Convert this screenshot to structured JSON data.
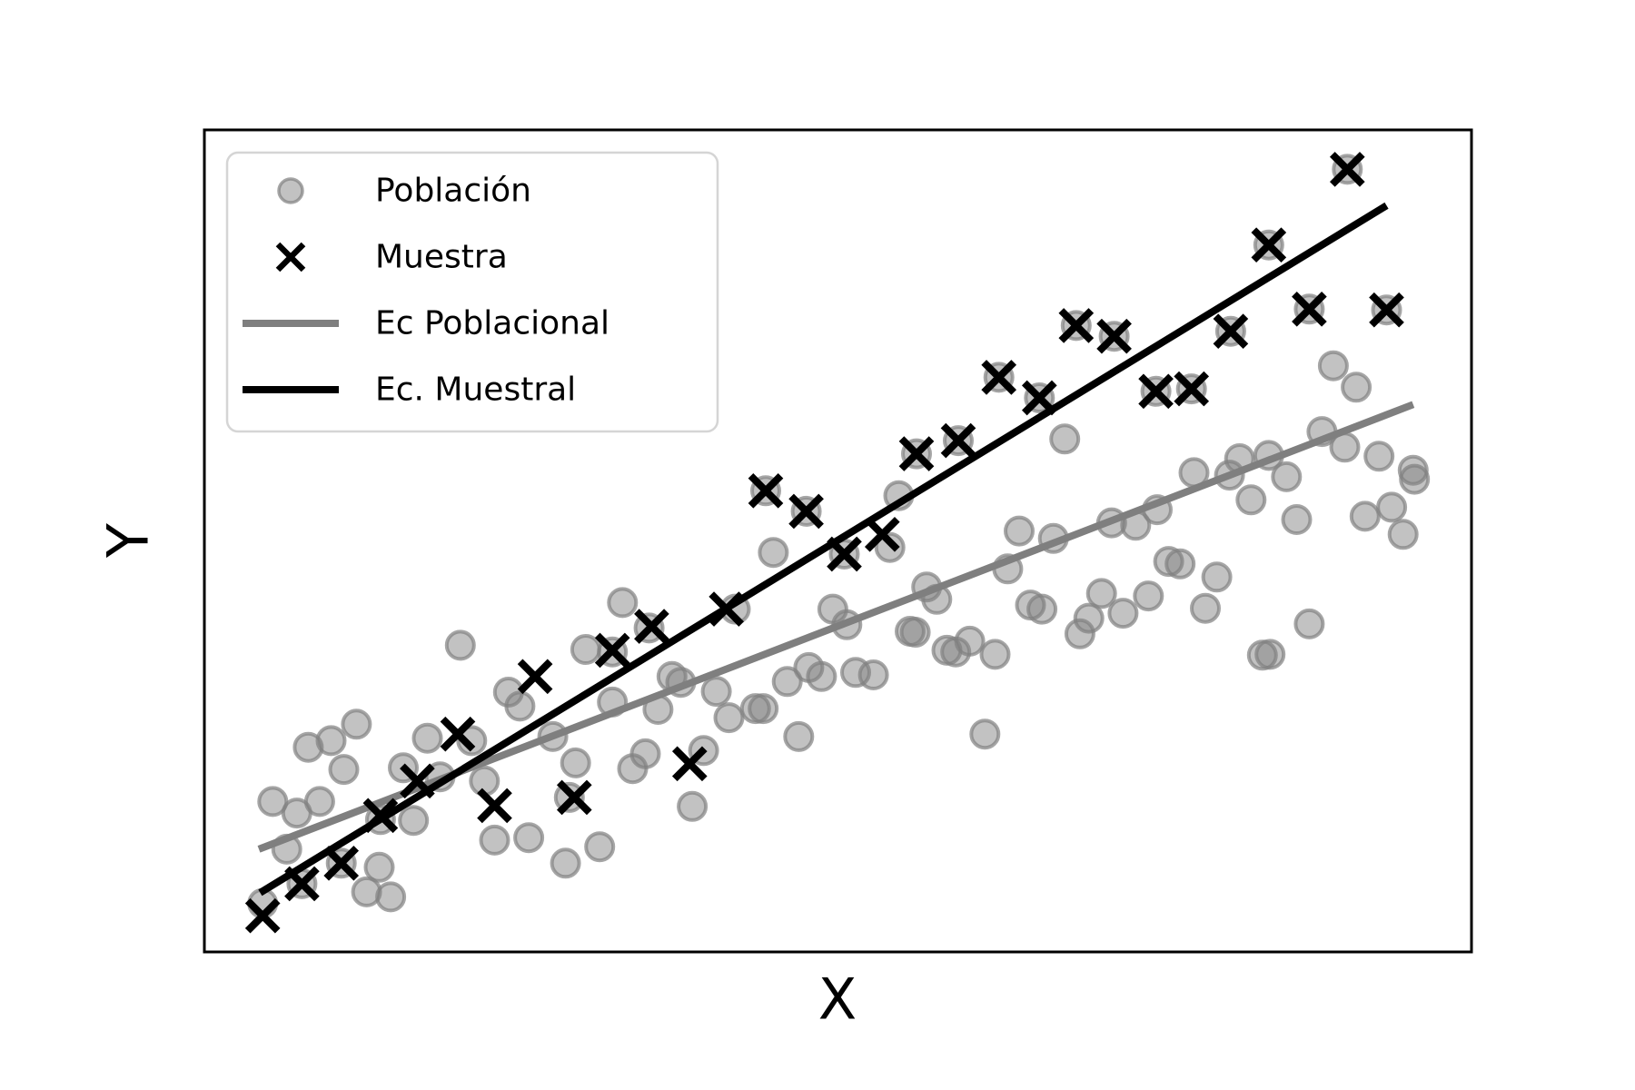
{
  "chart_data": {
    "type": "scatter",
    "title": "",
    "xlabel": "X",
    "ylabel": "Y",
    "xlim": [
      0,
      10
    ],
    "ylim": [
      0,
      10
    ],
    "grid": false,
    "ticks_visible": false,
    "colors": {
      "population": "#808080",
      "sample": "#000000",
      "population_line": "#7f7f7f",
      "sample_line": "#000000",
      "legend_border": "#d5d5d5"
    },
    "legend": {
      "position": "upper-left",
      "entries": [
        {
          "label": "Población",
          "marker": "circle"
        },
        {
          "label": "Muestra",
          "marker": "x"
        },
        {
          "label": "Ec Poblacional",
          "marker": "line-gray"
        },
        {
          "label": "Ec. Muestral",
          "marker": "line-black"
        }
      ]
    },
    "series": [
      {
        "name": "Población",
        "type": "scatter-circle",
        "points": [
          [
            0.46,
            0.59
          ],
          [
            0.65,
            1.25
          ],
          [
            0.77,
            0.83
          ],
          [
            1.08,
            1.08
          ],
          [
            1.28,
            0.73
          ],
          [
            1.38,
            1.03
          ],
          [
            1.47,
            0.67
          ],
          [
            2.29,
            1.36
          ],
          [
            2.56,
            1.39
          ],
          [
            2.85,
            1.08
          ],
          [
            3.12,
            1.28
          ],
          [
            3.85,
            1.77
          ],
          [
            2.88,
            1.88
          ],
          [
            2.93,
            2.3
          ],
          [
            3.38,
            2.23
          ],
          [
            3.48,
            2.41
          ],
          [
            3.94,
            2.45
          ],
          [
            0.54,
            1.83
          ],
          [
            0.73,
            1.69
          ],
          [
            0.91,
            1.83
          ],
          [
            1.39,
            1.61
          ],
          [
            1.65,
            1.6
          ],
          [
            2.02,
            3.73
          ],
          [
            2.4,
            3.16
          ],
          [
            2.49,
            2.99
          ],
          [
            1.2,
            2.77
          ],
          [
            0.82,
            2.49
          ],
          [
            1.0,
            2.57
          ],
          [
            1.76,
            2.6
          ],
          [
            2.11,
            2.57
          ],
          [
            1.1,
            2.22
          ],
          [
            1.57,
            2.24
          ],
          [
            1.86,
            2.13
          ],
          [
            2.21,
            2.08
          ],
          [
            2.75,
            2.62
          ],
          [
            3.22,
            3.04
          ],
          [
            3.58,
            2.95
          ],
          [
            4.14,
            2.85
          ],
          [
            4.35,
            2.96
          ],
          [
            4.41,
            2.96
          ],
          [
            4.69,
            2.62
          ],
          [
            3.01,
            3.68
          ],
          [
            3.22,
            3.65
          ],
          [
            3.3,
            4.25
          ],
          [
            3.51,
            3.94
          ],
          [
            4.49,
            4.86
          ],
          [
            5.41,
            4.92
          ],
          [
            5.48,
            5.55
          ],
          [
            4.19,
            4.17
          ],
          [
            4.96,
            4.17
          ],
          [
            5.07,
            3.98
          ],
          [
            5.57,
            3.9
          ],
          [
            3.69,
            3.35
          ],
          [
            3.76,
            3.28
          ],
          [
            4.04,
            3.17
          ],
          [
            4.6,
            3.29
          ],
          [
            4.77,
            3.46
          ],
          [
            4.87,
            3.35
          ],
          [
            5.14,
            3.4
          ],
          [
            5.28,
            3.37
          ],
          [
            7.81,
            5.83
          ],
          [
            8.09,
            5.8
          ],
          [
            8.26,
            5.5
          ],
          [
            7.52,
            5.38
          ],
          [
            7.16,
            5.22
          ],
          [
            7.35,
            5.19
          ],
          [
            6.43,
            5.12
          ],
          [
            6.7,
            5.03
          ],
          [
            6.34,
            4.66
          ],
          [
            7.61,
            4.75
          ],
          [
            7.7,
            4.72
          ],
          [
            7.99,
            4.56
          ],
          [
            5.7,
            4.44
          ],
          [
            5.78,
            4.29
          ],
          [
            7.08,
            4.36
          ],
          [
            7.45,
            4.33
          ],
          [
            6.52,
            4.22
          ],
          [
            6.61,
            4.17
          ],
          [
            7.9,
            4.18
          ],
          [
            6.98,
            4.06
          ],
          [
            7.25,
            4.12
          ],
          [
            6.91,
            3.87
          ],
          [
            5.61,
            3.89
          ],
          [
            5.86,
            3.67
          ],
          [
            6.04,
            3.78
          ],
          [
            5.93,
            3.65
          ],
          [
            6.24,
            3.62
          ],
          [
            8.35,
            3.61
          ],
          [
            6.16,
            2.65
          ],
          [
            9.0,
            6.14
          ],
          [
            9.27,
            6.03
          ],
          [
            8.54,
            5.78
          ],
          [
            9.55,
            5.75
          ],
          [
            8.62,
            5.26
          ],
          [
            9.16,
            5.3
          ],
          [
            9.37,
            5.41
          ],
          [
            9.46,
            5.08
          ],
          [
            8.72,
            3.99
          ],
          [
            8.41,
            3.62
          ],
          [
            8.91,
            7.13
          ],
          [
            9.09,
            6.87
          ],
          [
            8.82,
            6.33
          ],
          [
            9.54,
            5.86
          ],
          [
            6.79,
            6.24
          ],
          [
            8.17,
            6.0
          ],
          [
            8.4,
            6.04
          ],
          [
            6.27,
            6.99
          ],
          [
            6.59,
            6.74
          ],
          [
            6.88,
            7.62
          ],
          [
            7.18,
            7.49
          ],
          [
            7.51,
            6.82
          ],
          [
            7.79,
            6.85
          ],
          [
            8.1,
            7.55
          ],
          [
            8.4,
            8.6
          ],
          [
            8.72,
            7.82
          ],
          [
            9.02,
            9.52
          ],
          [
            9.33,
            7.81
          ],
          [
            5.95,
            6.22
          ],
          [
            5.62,
            6.06
          ],
          [
            5.05,
            4.84
          ],
          [
            4.75,
            5.36
          ],
          [
            4.43,
            5.61
          ]
        ]
      },
      {
        "name": "Muestra",
        "type": "scatter-x",
        "points": [
          [
            0.46,
            0.44
          ],
          [
            0.77,
            0.83
          ],
          [
            1.08,
            1.08
          ],
          [
            1.39,
            1.66
          ],
          [
            1.68,
            2.08
          ],
          [
            2.0,
            2.65
          ],
          [
            2.29,
            1.78
          ],
          [
            2.61,
            3.35
          ],
          [
            2.92,
            1.88
          ],
          [
            3.22,
            3.67
          ],
          [
            3.53,
            3.96
          ],
          [
            3.83,
            2.29
          ],
          [
            4.12,
            4.17
          ],
          [
            4.43,
            5.61
          ],
          [
            4.75,
            5.36
          ],
          [
            5.05,
            4.84
          ],
          [
            5.35,
            5.08
          ],
          [
            5.62,
            6.06
          ],
          [
            5.95,
            6.22
          ],
          [
            6.27,
            6.99
          ],
          [
            6.59,
            6.74
          ],
          [
            6.88,
            7.62
          ],
          [
            7.18,
            7.49
          ],
          [
            7.51,
            6.82
          ],
          [
            7.79,
            6.85
          ],
          [
            8.1,
            7.55
          ],
          [
            8.4,
            8.6
          ],
          [
            8.72,
            7.82
          ],
          [
            9.02,
            9.52
          ],
          [
            9.33,
            7.81
          ]
        ]
      },
      {
        "name": "Ec Poblacional",
        "type": "line",
        "endpoints": [
          [
            0.43,
            1.25
          ],
          [
            9.54,
            6.66
          ]
        ]
      },
      {
        "name": "Ec. Muestral",
        "type": "line",
        "endpoints": [
          [
            0.44,
            0.72
          ],
          [
            9.33,
            9.08
          ]
        ]
      }
    ]
  }
}
